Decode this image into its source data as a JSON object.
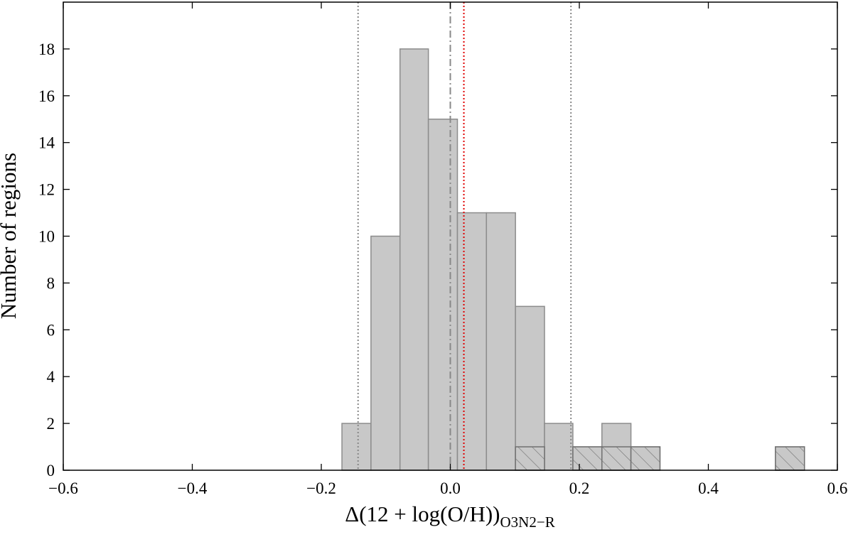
{
  "chart_data": {
    "type": "histogram",
    "xlabel": "Δ(12 + log(O/H))",
    "xlabel_subscript": "O3N2−R",
    "ylabel": "Number of regions",
    "bins": [
      -0.168,
      -0.123,
      -0.078,
      -0.034,
      0.011,
      0.056,
      0.101,
      0.146,
      0.19,
      0.235,
      0.28,
      0.325,
      0.37,
      0.414,
      0.459,
      0.504,
      0.549
    ],
    "series": [
      {
        "color": "#c8c8c8",
        "edgecolor": "#8c8c8c",
        "hatch": false,
        "values": [
          2,
          10,
          18,
          15,
          11,
          11,
          7,
          2,
          1,
          2,
          1,
          0,
          0,
          0,
          0,
          1
        ]
      },
      {
        "color": "#c8c8c8",
        "edgecolor": "#707070",
        "hatch": true,
        "values": [
          0,
          0,
          0,
          0,
          0,
          0,
          1,
          0,
          1,
          1,
          1,
          0,
          0,
          0,
          0,
          1
        ]
      }
    ],
    "vlines": [
      {
        "x": -0.143,
        "color": "#888888",
        "style": "dotted"
      },
      {
        "x": 0.0,
        "color": "#888888",
        "style": "dashdot"
      },
      {
        "x": 0.021,
        "color": "#e00000",
        "style": "dotted"
      },
      {
        "x": 0.187,
        "color": "#888888",
        "style": "dotted"
      }
    ],
    "xlim": [
      -0.6,
      0.6
    ],
    "xticks": [
      {
        "value": -0.6,
        "label": "−0.6"
      },
      {
        "value": -0.4,
        "label": "−0.4"
      },
      {
        "value": -0.2,
        "label": "−0.2"
      },
      {
        "value": 0,
        "label": "0.0"
      },
      0.2,
      0.4,
      0.6
    ],
    "ylim": [
      0,
      20
    ],
    "yticks": [
      0,
      2,
      4,
      6,
      8,
      10,
      12,
      14,
      16,
      18
    ]
  }
}
